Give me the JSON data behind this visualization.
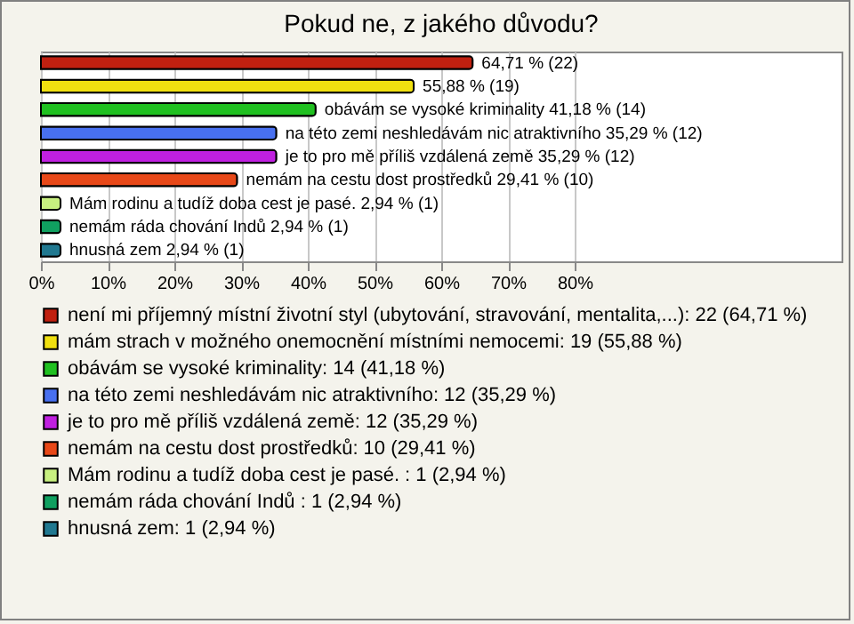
{
  "chart_data": {
    "type": "bar",
    "orientation": "horizontal",
    "title": "Pokud ne, z jakého důvodu?",
    "categories": [
      null,
      null,
      null,
      null,
      null,
      null,
      null,
      null,
      null
    ],
    "series": [
      {
        "name": "není mi příjemný místní životní styl (ubytování, stravování, mentalita,...): 22 (64,71 %)",
        "color": "#c02010",
        "values": [
          64.71,
          null,
          null,
          null,
          null,
          null,
          null,
          null,
          null
        ],
        "value_labels": [
          "64,71 % (22)",
          null,
          null,
          null,
          null,
          null,
          null,
          null,
          null
        ]
      },
      {
        "name": "mám strach v možného onemocnění místními nemocemi: 19 (55,88 %)",
        "color": "#f0e010",
        "values": [
          null,
          55.88,
          null,
          null,
          null,
          null,
          null,
          null,
          null
        ],
        "value_labels": [
          null,
          "55,88 % (19)",
          null,
          null,
          null,
          null,
          null,
          null,
          null
        ]
      },
      {
        "name": "obávám se vysoké kriminality: 14 (41,18 %)",
        "color": "#20c020",
        "values": [
          null,
          null,
          41.18,
          null,
          null,
          null,
          null,
          null,
          null
        ],
        "value_labels": [
          null,
          null,
          "obávám se vysoké kriminality 41,18 % (14)",
          null,
          null,
          null,
          null,
          null,
          null
        ]
      },
      {
        "name": "na této zemi neshledávám nic atraktivního: 12 (35,29 %)",
        "color": "#4870f0",
        "values": [
          null,
          null,
          null,
          35.29,
          null,
          null,
          null,
          null,
          null
        ],
        "value_labels": [
          null,
          null,
          null,
          "na této zemi neshledávám nic atraktivního 35,29 % (12)",
          null,
          null,
          null,
          null,
          null
        ]
      },
      {
        "name": "je to pro mě příliš vzdálená země: 12 (35,29 %)",
        "color": "#c020e0",
        "values": [
          null,
          null,
          null,
          null,
          35.29,
          null,
          null,
          null,
          null
        ],
        "value_labels": [
          null,
          null,
          null,
          null,
          "je to pro mě příliš vzdálená země 35,29 % (12)",
          null,
          null,
          null,
          null
        ]
      },
      {
        "name": "nemám na cestu dost prostředků: 10 (29,41 %)",
        "color": "#e84818",
        "values": [
          null,
          null,
          null,
          null,
          null,
          29.41,
          null,
          null,
          null
        ],
        "value_labels": [
          null,
          null,
          null,
          null,
          null,
          "nemám na cestu dost prostředků 29,41 % (10)",
          null,
          null,
          null
        ]
      },
      {
        "name": "Mám rodinu a tudíž doba cest je pasé. : 1 (2,94 %)",
        "color": "#c8f080",
        "values": [
          null,
          null,
          null,
          null,
          null,
          null,
          2.94,
          null,
          null
        ],
        "value_labels": [
          null,
          null,
          null,
          null,
          null,
          null,
          "Mám rodinu a tudíž doba cest je pasé.  2,94 % (1)",
          null,
          null
        ]
      },
      {
        "name": "nemám ráda chování Indů : 1 (2,94 %)",
        "color": "#10a060",
        "values": [
          null,
          null,
          null,
          null,
          null,
          null,
          null,
          2.94,
          null
        ],
        "value_labels": [
          null,
          null,
          null,
          null,
          null,
          null,
          null,
          "nemám ráda chování Indů  2,94 % (1)",
          null
        ]
      },
      {
        "name": "hnusná zem: 1 (2,94 %)",
        "color": "#207890",
        "values": [
          null,
          null,
          null,
          null,
          null,
          null,
          null,
          null,
          2.94
        ],
        "value_labels": [
          null,
          null,
          null,
          null,
          null,
          null,
          null,
          null,
          "hnusná zem 2,94 % (1)"
        ]
      }
    ],
    "xlim": [
      0,
      120
    ],
    "xticks": [
      {
        "value": 0,
        "label": "0%"
      },
      {
        "value": 10,
        "label": "10%"
      },
      {
        "value": 20,
        "label": "20%"
      },
      {
        "value": 30,
        "label": "30%"
      },
      {
        "value": 40,
        "label": "40%"
      },
      {
        "value": 50,
        "label": "50%"
      },
      {
        "value": 60,
        "label": "60%"
      },
      {
        "value": 70,
        "label": "70%"
      },
      {
        "value": 80,
        "label": "80%"
      }
    ],
    "grid": true,
    "legend": "bottom",
    "tick_labels": "x"
  }
}
